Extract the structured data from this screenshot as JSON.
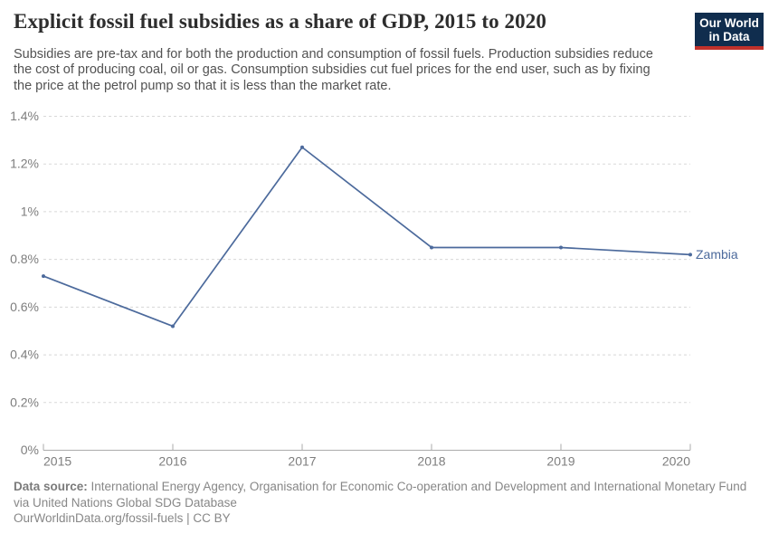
{
  "header": {
    "title": "Explicit fossil fuel subsidies as a share of GDP, 2015 to 2020",
    "subtitle_lines": [
      "Subsidies are pre-tax and for both the production and consumption of fossil fuels. Production subsidies reduce",
      "the cost of producing coal, oil or gas. Consumption subsidies cut fuel prices for the end user, such as by fixing",
      "the price at the petrol pump so that it is less than the market rate."
    ],
    "logo": {
      "line1": "Our World",
      "line2": "in Data",
      "bg_color": "#102d4e",
      "accent_color": "#c0312b"
    }
  },
  "chart_data": {
    "type": "line",
    "title": "Explicit fossil fuel subsidies as a share of GDP, 2015 to 2020",
    "x": [
      2015,
      2016,
      2017,
      2018,
      2019,
      2020
    ],
    "series": [
      {
        "name": "Zambia",
        "values": [
          0.73,
          0.52,
          1.27,
          0.85,
          0.85,
          0.82
        ],
        "color": "#4C6A9C"
      }
    ],
    "ylim": [
      0,
      1.4
    ],
    "yticks": [
      0,
      0.2,
      0.4,
      0.6,
      0.8,
      1,
      1.2,
      1.4
    ],
    "ytick_labels": [
      "0%",
      "0.2%",
      "0.4%",
      "0.6%",
      "0.8%",
      "1%",
      "1.2%",
      "1.4%"
    ],
    "grid": "horizontal-dashed",
    "legend_position": "line-end-label",
    "grid_color": "#d8d8d8",
    "axis_color": "#ababab",
    "tick_label_color": "#7e7e7e"
  },
  "footer": {
    "datasource_label": "Data source:",
    "datasource_text": " International Energy Agency, Organisation for Economic Co-operation and Development and International Monetary Fund via United Nations Global SDG Database",
    "license_line": "OurWorldinData.org/fossil-fuels | CC BY"
  }
}
